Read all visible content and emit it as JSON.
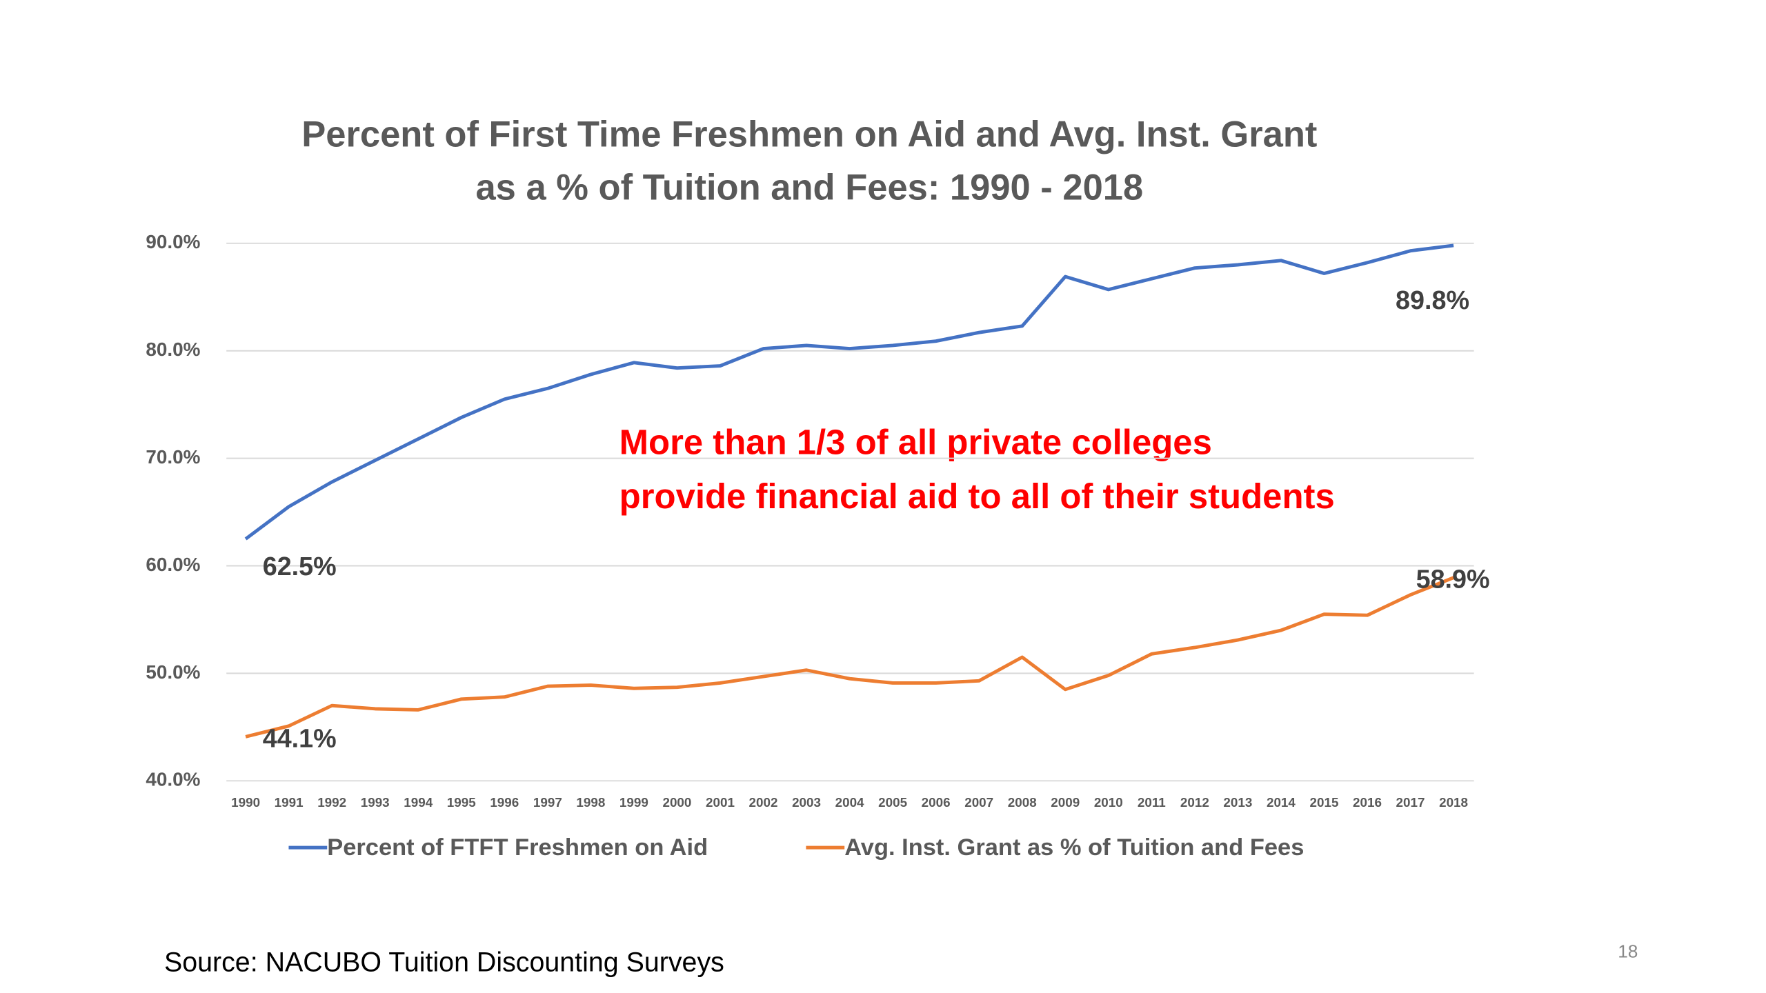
{
  "chart_data": {
    "type": "line",
    "title": [
      "Percent of First Time Freshmen on Aid and Avg. Inst. Grant",
      "as a % of Tuition and Fees: 1990 - 2018"
    ],
    "x": [
      1990,
      1991,
      1992,
      1993,
      1994,
      1995,
      1996,
      1997,
      1998,
      1999,
      2000,
      2001,
      2002,
      2003,
      2004,
      2005,
      2006,
      2007,
      2008,
      2009,
      2010,
      2011,
      2012,
      2013,
      2014,
      2015,
      2016,
      2017,
      2018
    ],
    "xlim": [
      1990,
      2018
    ],
    "ylim": [
      40,
      90
    ],
    "yticks": [
      {
        "value": 40,
        "label": "40.0%"
      },
      {
        "value": 50,
        "label": "50.0%"
      },
      {
        "value": 60,
        "label": "60.0%"
      },
      {
        "value": 70,
        "label": "70.0%"
      },
      {
        "value": 80,
        "label": "80.0%"
      },
      {
        "value": 90,
        "label": "90.0%"
      }
    ],
    "grid": true,
    "legend": "bottom",
    "series": [
      {
        "name": "Percent of FTFT Freshmen on Aid",
        "color": "#4472c4",
        "values": [
          62.5,
          65.5,
          67.8,
          69.8,
          71.8,
          73.8,
          75.5,
          76.5,
          77.8,
          78.9,
          78.4,
          78.6,
          80.2,
          80.5,
          80.2,
          80.5,
          80.9,
          81.7,
          82.3,
          86.9,
          85.7,
          86.7,
          87.7,
          88.0,
          88.4,
          87.2,
          88.2,
          89.3,
          89.8
        ],
        "value_labels": [
          "62.5%",
          null,
          null,
          null,
          null,
          null,
          null,
          null,
          null,
          null,
          null,
          null,
          null,
          null,
          null,
          null,
          null,
          null,
          null,
          null,
          null,
          null,
          null,
          null,
          null,
          null,
          null,
          null,
          "89.8%"
        ]
      },
      {
        "name": "Avg. Inst. Grant as % of Tuition and Fees",
        "color": "#ed7d31",
        "values": [
          44.1,
          45.1,
          47.0,
          46.7,
          46.6,
          47.6,
          47.8,
          48.8,
          48.9,
          48.6,
          48.7,
          49.1,
          49.7,
          50.3,
          49.5,
          49.1,
          49.1,
          49.3,
          51.5,
          48.5,
          49.8,
          51.8,
          52.4,
          53.1,
          54.0,
          55.5,
          55.4,
          57.3,
          58.9
        ],
        "value_labels": [
          "44.1%",
          null,
          null,
          null,
          null,
          null,
          null,
          null,
          null,
          null,
          null,
          null,
          null,
          null,
          null,
          null,
          null,
          null,
          null,
          null,
          null,
          null,
          null,
          null,
          null,
          null,
          null,
          null,
          "58.9%"
        ]
      }
    ],
    "annotation": [
      "More than 1/3 of all private colleges",
      "provide financial aid to all of their students"
    ],
    "source": "Source: NACUBO Tuition Discounting Surveys",
    "page_number": "18"
  }
}
